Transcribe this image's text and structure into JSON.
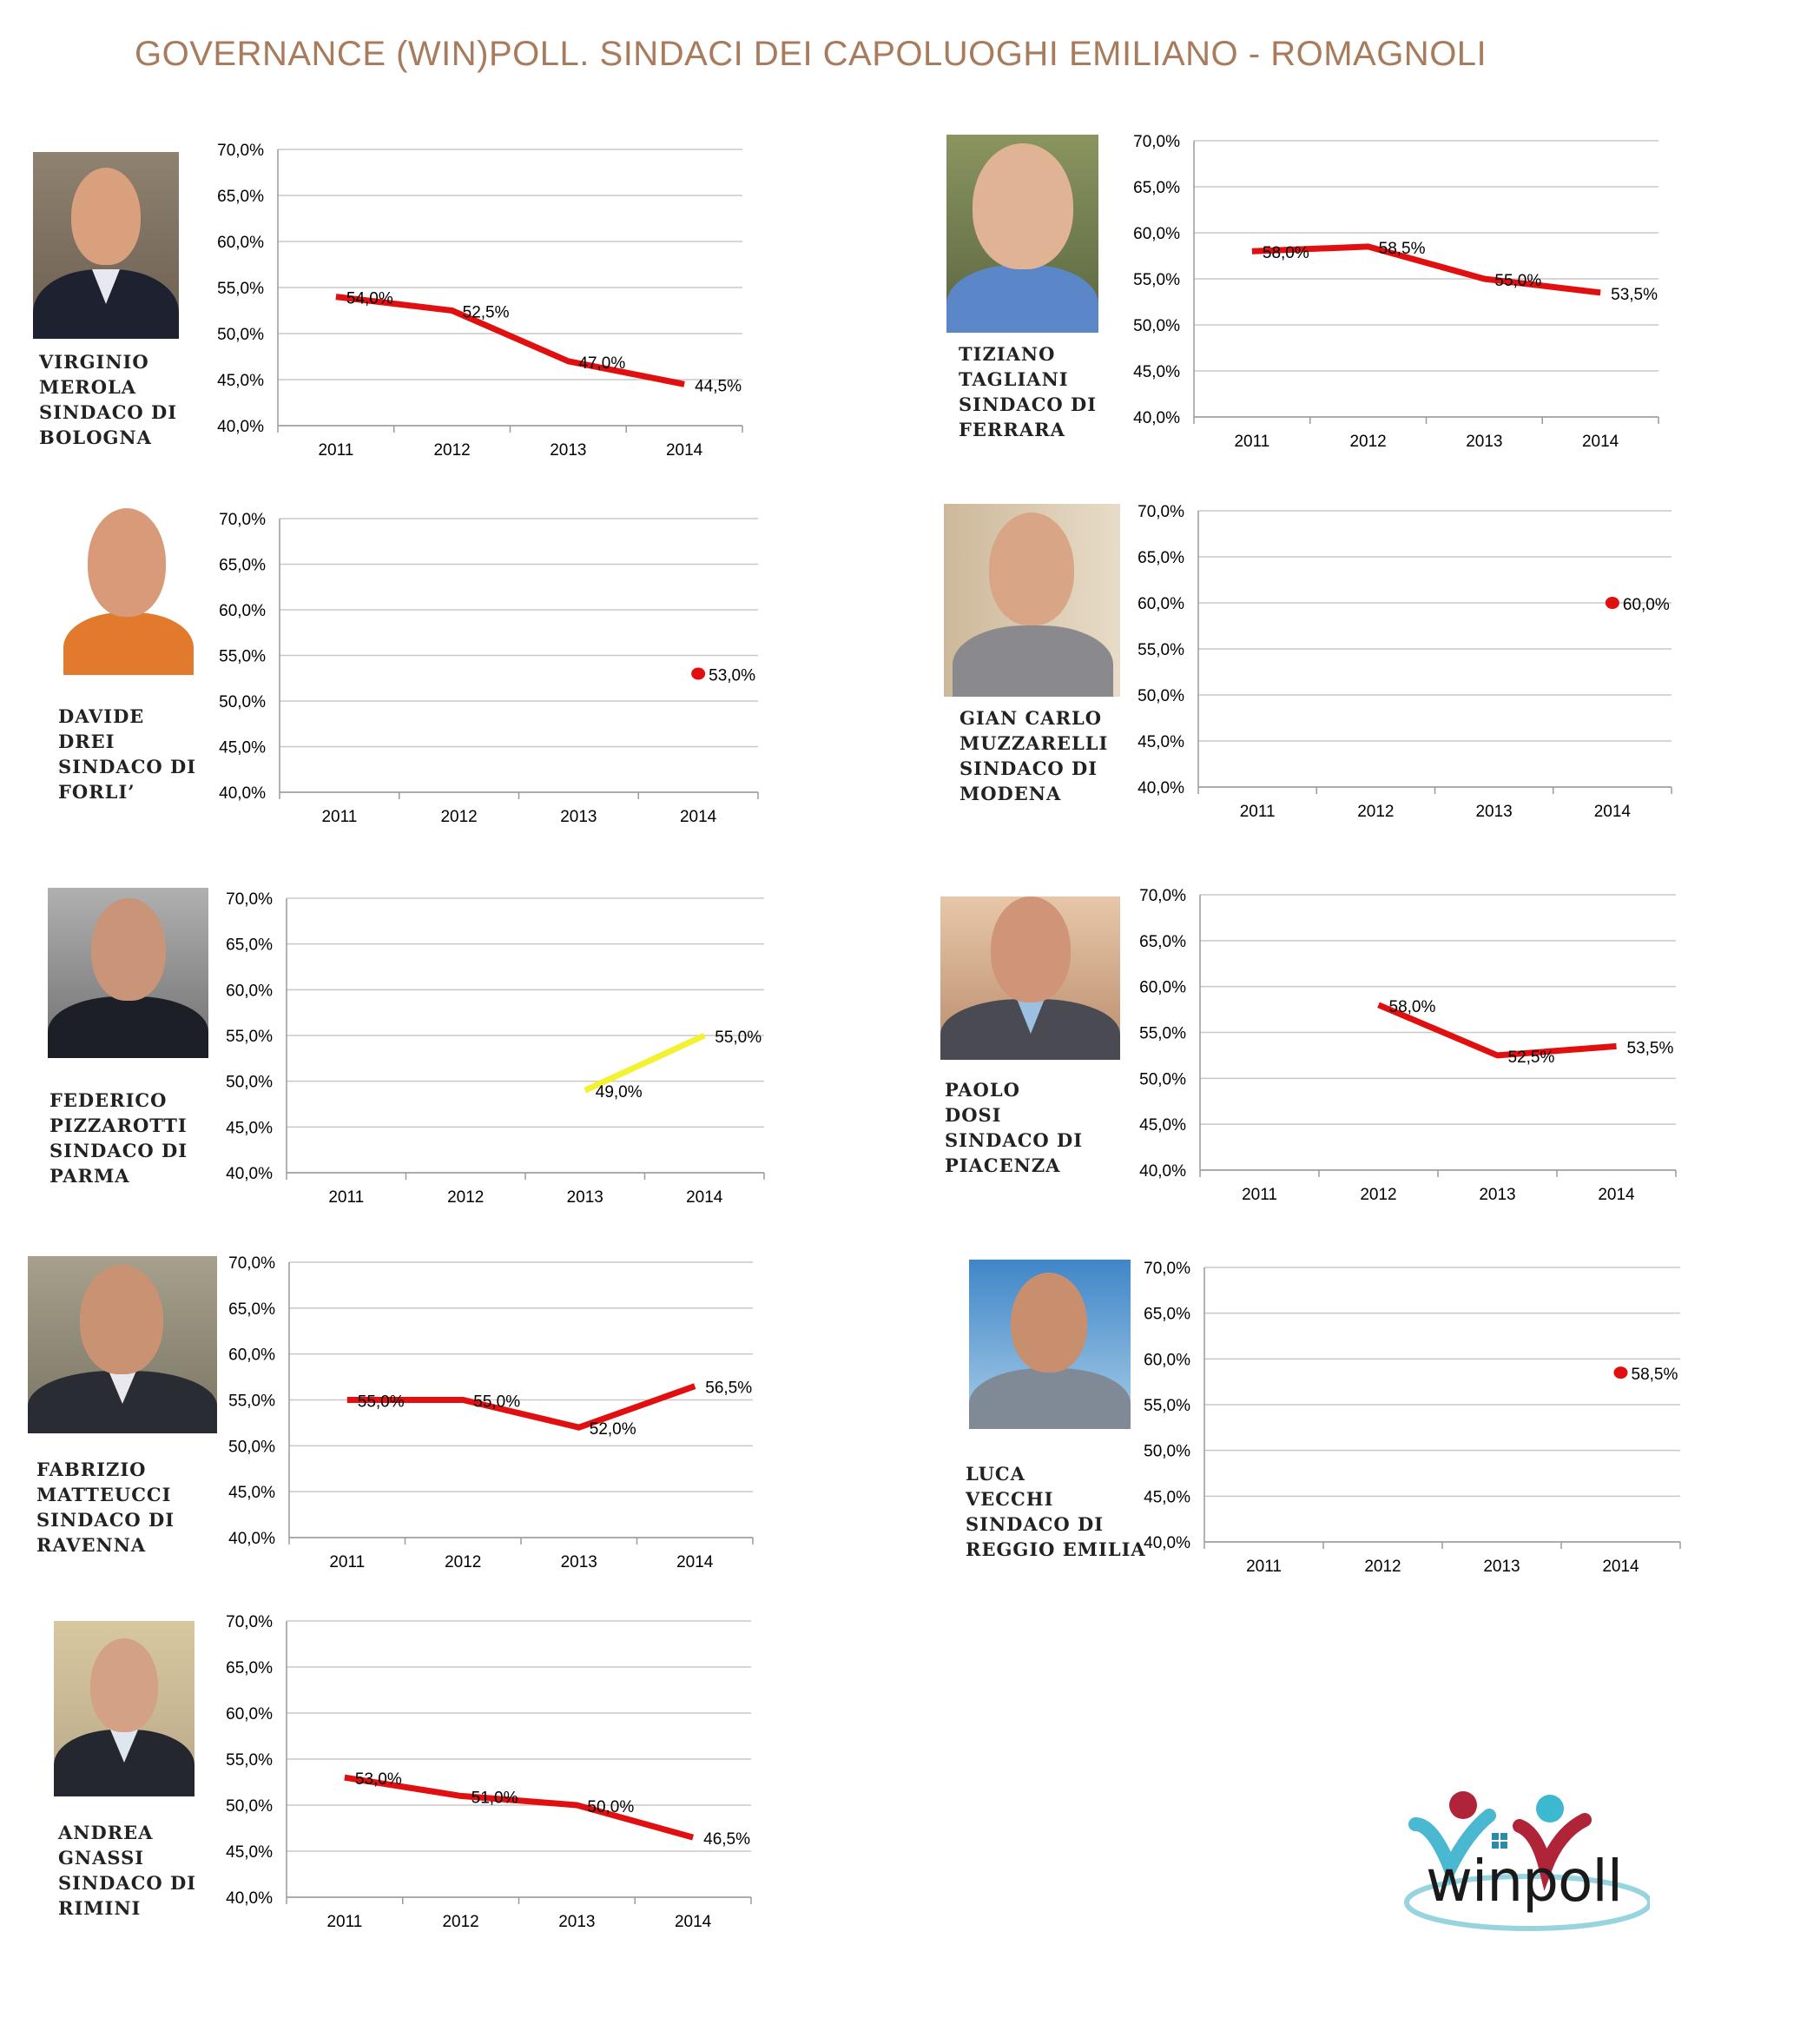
{
  "title": "GOVERNANCE (WIN)POLL. SINDACI DEI CAPOLUOGHI EMILIANO - ROMAGNOLI",
  "logo_text": "winpoll",
  "colors": {
    "line_red": "#e01010",
    "line_yellow": "#f2f232",
    "grid": "#c8c8c8",
    "title": "#a87b5c"
  },
  "chart_data": [
    {
      "type": "line",
      "id": "bologna",
      "caption": [
        "VIRGINIO",
        "MEROLA",
        "SINDACO DI",
        "BOLOGNA"
      ],
      "categories": [
        "2011",
        "2012",
        "2013",
        "2014"
      ],
      "yticks": [
        "40,0%",
        "45,0%",
        "50,0%",
        "55,0%",
        "60,0%",
        "65,0%",
        "70,0%"
      ],
      "ylim": [
        40,
        70
      ],
      "series": [
        {
          "color": "#e01010",
          "values": [
            54.0,
            52.5,
            47.0,
            44.5
          ],
          "labels": [
            "54,0%",
            "52,5%",
            "47,0%",
            "44,5%"
          ]
        }
      ]
    },
    {
      "type": "line",
      "id": "ferrara",
      "caption": [
        "TIZIANO",
        "TAGLIANI",
        "SINDACO DI",
        "FERRARA"
      ],
      "categories": [
        "2011",
        "2012",
        "2013",
        "2014"
      ],
      "yticks": [
        "40,0%",
        "45,0%",
        "50,0%",
        "55,0%",
        "60,0%",
        "65,0%",
        "70,0%"
      ],
      "ylim": [
        40,
        70
      ],
      "series": [
        {
          "color": "#e01010",
          "values": [
            58.0,
            58.5,
            55.0,
            53.5
          ],
          "labels": [
            "58,0%",
            "58,5%",
            "55,0%",
            "53,5%"
          ]
        }
      ]
    },
    {
      "type": "line",
      "id": "forli",
      "caption": [
        "DAVIDE",
        "DREI",
        "SINDACO DI",
        "FORLI’"
      ],
      "categories": [
        "2011",
        "2012",
        "2013",
        "2014"
      ],
      "yticks": [
        "40,0%",
        "45,0%",
        "50,0%",
        "55,0%",
        "60,0%",
        "65,0%",
        "70,0%"
      ],
      "ylim": [
        40,
        70
      ],
      "series": [
        {
          "color": "#e01010",
          "values": [
            null,
            null,
            null,
            53.0
          ],
          "labels": [
            null,
            null,
            null,
            "53,0%"
          ]
        }
      ]
    },
    {
      "type": "line",
      "id": "modena",
      "caption": [
        "GIAN CARLO",
        "MUZZARELLI",
        "SINDACO DI",
        "MODENA"
      ],
      "categories": [
        "2011",
        "2012",
        "2013",
        "2014"
      ],
      "yticks": [
        "40,0%",
        "45,0%",
        "50,0%",
        "55,0%",
        "60,0%",
        "65,0%",
        "70,0%"
      ],
      "ylim": [
        40,
        70
      ],
      "series": [
        {
          "color": "#e01010",
          "values": [
            null,
            null,
            null,
            60.0
          ],
          "labels": [
            null,
            null,
            null,
            "60,0%"
          ]
        }
      ]
    },
    {
      "type": "line",
      "id": "parma",
      "caption": [
        "FEDERICO",
        "PIZZAROTTI",
        "SINDACO DI",
        "PARMA"
      ],
      "categories": [
        "2011",
        "2012",
        "2013",
        "2014"
      ],
      "yticks": [
        "40,0%",
        "45,0%",
        "50,0%",
        "55,0%",
        "60,0%",
        "65,0%",
        "70,0%"
      ],
      "ylim": [
        40,
        70
      ],
      "series": [
        {
          "color": "#f2f232",
          "values": [
            null,
            null,
            49.0,
            55.0
          ],
          "labels": [
            null,
            null,
            "49,0%",
            "55,0%"
          ]
        }
      ]
    },
    {
      "type": "line",
      "id": "piacenza",
      "caption": [
        "PAOLO",
        "DOSI",
        "SINDACO DI",
        "PIACENZA"
      ],
      "categories": [
        "2011",
        "2012",
        "2013",
        "2014"
      ],
      "yticks": [
        "40,0%",
        "45,0%",
        "50,0%",
        "55,0%",
        "60,0%",
        "65,0%",
        "70,0%"
      ],
      "ylim": [
        40,
        70
      ],
      "series": [
        {
          "color": "#e01010",
          "values": [
            null,
            58.0,
            52.5,
            53.5
          ],
          "labels": [
            null,
            "58,0%",
            "52,5%",
            "53,5%"
          ]
        }
      ]
    },
    {
      "type": "line",
      "id": "ravenna",
      "caption": [
        "FABRIZIO",
        "MATTEUCCI",
        "SINDACO DI",
        "RAVENNA"
      ],
      "categories": [
        "2011",
        "2012",
        "2013",
        "2014"
      ],
      "yticks": [
        "40,0%",
        "45,0%",
        "50,0%",
        "55,0%",
        "60,0%",
        "65,0%",
        "70,0%"
      ],
      "ylim": [
        40,
        70
      ],
      "series": [
        {
          "color": "#e01010",
          "values": [
            55.0,
            55.0,
            52.0,
            56.5
          ],
          "labels": [
            "55,0%",
            "55,0%",
            "52,0%",
            "56,5%"
          ]
        }
      ]
    },
    {
      "type": "line",
      "id": "reggio",
      "caption": [
        "LUCA",
        "VECCHI",
        "SINDACO DI",
        "REGGIO EMILIA"
      ],
      "categories": [
        "2011",
        "2012",
        "2013",
        "2014"
      ],
      "yticks": [
        "40,0%",
        "45,0%",
        "50,0%",
        "55,0%",
        "60,0%",
        "65,0%",
        "70,0%"
      ],
      "ylim": [
        40,
        70
      ],
      "series": [
        {
          "color": "#e01010",
          "values": [
            null,
            null,
            null,
            58.5
          ],
          "labels": [
            null,
            null,
            null,
            "58,5%"
          ]
        }
      ]
    },
    {
      "type": "line",
      "id": "rimini",
      "caption": [
        "ANDREA",
        "GNASSI",
        "SINDACO DI",
        "RIMINI"
      ],
      "categories": [
        "2011",
        "2012",
        "2013",
        "2014"
      ],
      "yticks": [
        "40,0%",
        "45,0%",
        "50,0%",
        "55,0%",
        "60,0%",
        "65,0%",
        "70,0%"
      ],
      "ylim": [
        40,
        70
      ],
      "series": [
        {
          "color": "#e01010",
          "values": [
            53.0,
            51.0,
            50.0,
            46.5
          ],
          "labels": [
            "53,0%",
            "51,0%",
            "50,0%",
            "46,5%"
          ]
        }
      ]
    }
  ]
}
